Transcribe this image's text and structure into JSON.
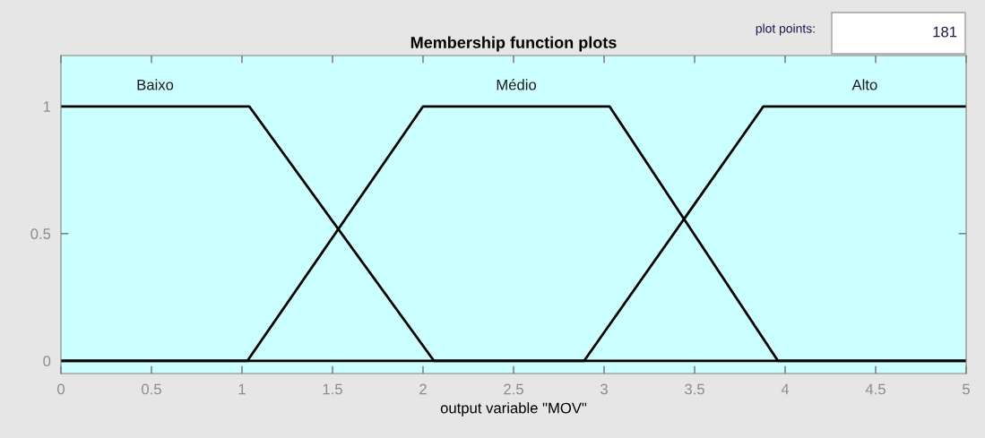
{
  "chart_data": {
    "type": "line",
    "title": "Membership function plots",
    "xlabel": "output variable \"MOV\"",
    "series": [
      {
        "name": "Baixo",
        "color": "#000000",
        "x": [
          0,
          1.04,
          2.06,
          5
        ],
        "values": [
          1,
          1,
          0,
          0
        ]
      },
      {
        "name": "Médio",
        "color": "#000000",
        "x": [
          0,
          1.03,
          2.0,
          3.03,
          3.96,
          5
        ],
        "values": [
          0,
          0,
          1,
          1,
          0,
          0
        ]
      },
      {
        "name": "Alto",
        "color": "#000000",
        "x": [
          0,
          2.89,
          3.88,
          5
        ],
        "values": [
          0,
          0,
          1,
          1
        ]
      }
    ],
    "xlim": [
      0,
      5
    ],
    "xticks": [
      0,
      0.5,
      1,
      1.5,
      2,
      2.5,
      3,
      3.5,
      4,
      4.5,
      5
    ],
    "ylim": [
      -0.05,
      1.2
    ],
    "yticks": [
      0,
      0.5,
      1
    ],
    "line_style": "solid",
    "grid": false,
    "legend": false,
    "annotations": [
      "plot points:",
      "181"
    ]
  }
}
